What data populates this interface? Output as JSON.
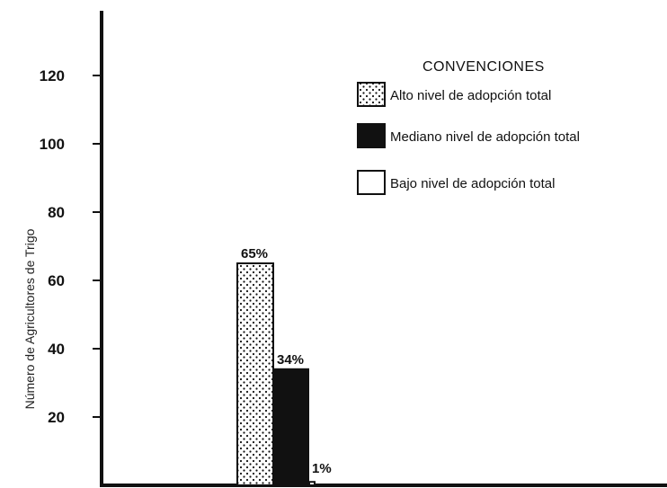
{
  "chart_data": {
    "type": "bar",
    "ylabel": "Número de Agricultores de Trigo",
    "ylim": [
      0,
      140
    ],
    "yticks": [
      "20",
      "40",
      "60",
      "80",
      "100",
      "120"
    ],
    "yticks_values": [
      20,
      40,
      60,
      80,
      100,
      120
    ],
    "categories": [
      ""
    ],
    "series": [
      {
        "name": "Alto nivel de adopción total",
        "values": [
          65
        ],
        "label": "65%",
        "fill": "dotted"
      },
      {
        "name": "Mediano nivel de adopción total",
        "values": [
          34
        ],
        "label": "34%",
        "fill": "#111111"
      },
      {
        "name": "Bajo nivel de adopción total",
        "values": [
          1
        ],
        "label": "1%",
        "fill": "#ffffff"
      }
    ],
    "legend": {
      "title": "CONVENCIONES",
      "position": "top-right"
    },
    "grid": false
  }
}
